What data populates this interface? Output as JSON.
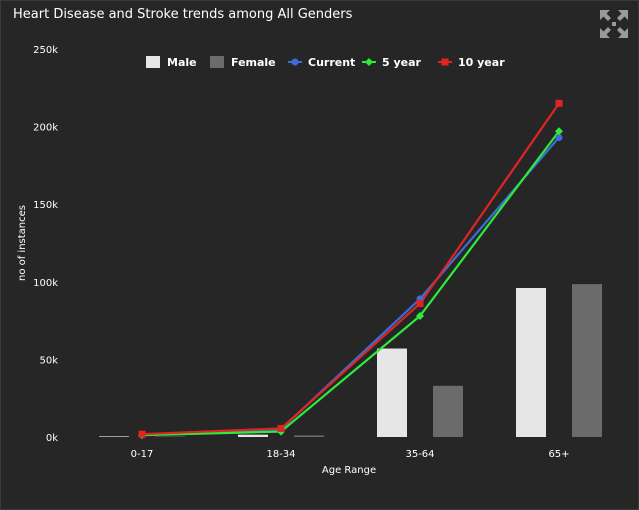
{
  "header": {
    "title": "Heart Disease and Stroke trends among All Genders",
    "expand_icon": "expand-arrows-icon"
  },
  "colors": {
    "background": "#262626",
    "male": "#e6e6e6",
    "female": "#6b6b6b",
    "current": "#3b6fd6",
    "five_year": "#2eea3a",
    "ten_year": "#e02424"
  },
  "chart_data": {
    "type": "bar",
    "title": "",
    "xlabel": "Age Range",
    "ylabel": "no of instances",
    "categories": [
      "0-17",
      "18-34",
      "35-64",
      "65+"
    ],
    "ylim": [
      0,
      250000
    ],
    "yticks": [
      0,
      50000,
      100000,
      150000,
      200000,
      250000
    ],
    "ytick_labels": [
      "0k",
      "50k",
      "100k",
      "150k",
      "200k",
      "250k"
    ],
    "grid": false,
    "legend_position": "top",
    "series": [
      {
        "name": "Male",
        "kind": "bar",
        "color": "#e6e6e6",
        "values": [
          400,
          1500,
          57000,
          96000
        ]
      },
      {
        "name": "Female",
        "kind": "bar",
        "color": "#6b6b6b",
        "values": [
          300,
          1000,
          33000,
          98500
        ]
      },
      {
        "name": "Current",
        "kind": "line",
        "marker": "circle",
        "color": "#3b6fd6",
        "values": [
          1500,
          5000,
          89000,
          193000
        ]
      },
      {
        "name": "5 year",
        "kind": "line",
        "marker": "diamond",
        "color": "#2eea3a",
        "values": [
          1200,
          3500,
          78000,
          197000
        ]
      },
      {
        "name": "10 year",
        "kind": "line",
        "marker": "square",
        "color": "#e02424",
        "values": [
          1800,
          5500,
          86000,
          215000
        ]
      }
    ]
  }
}
